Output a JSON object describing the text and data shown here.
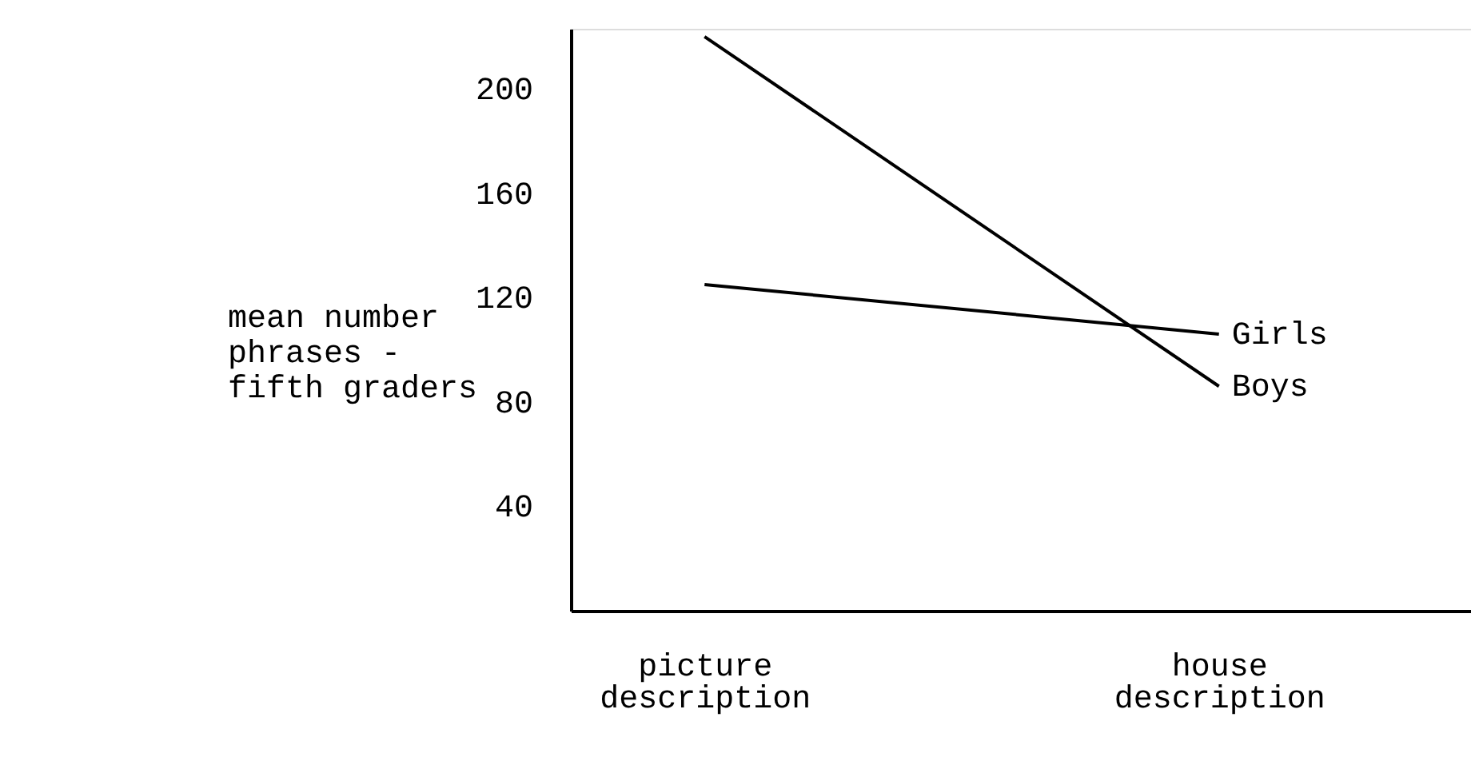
{
  "chart_data": {
    "type": "line",
    "ylabel": "mean number phrases - fifth graders",
    "categories": [
      "picture description",
      "house description"
    ],
    "series": [
      {
        "name": "Boys",
        "color": "#000000",
        "values": [
          220,
          86
        ]
      },
      {
        "name": "Girls",
        "color": "#000000",
        "values": [
          125,
          106
        ]
      }
    ],
    "ylim": [
      0,
      223
    ],
    "yticks": [
      40,
      80,
      120,
      160,
      200
    ],
    "grid": false,
    "legend": false,
    "marker": "none",
    "line_style": "solid"
  }
}
